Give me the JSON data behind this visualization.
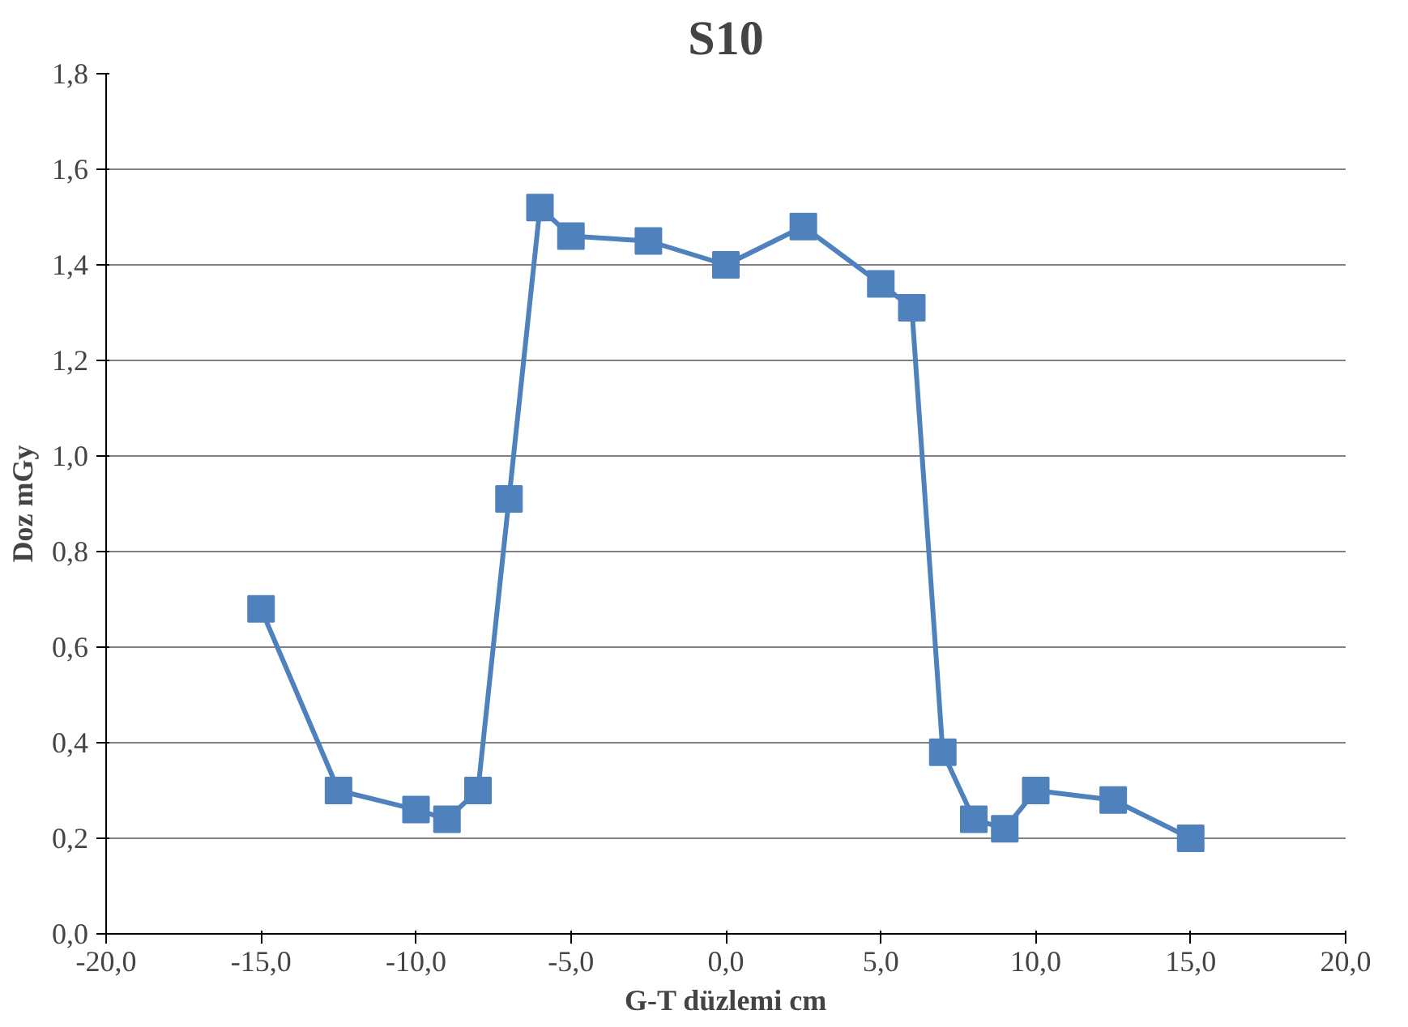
{
  "chart_data": {
    "type": "line",
    "title": "S10",
    "xlabel": "G-T düzlemi cm",
    "ylabel": "Doz mGy",
    "x": [
      -15,
      -12.5,
      -10,
      -9,
      -8,
      -7,
      -6,
      -5,
      -2.5,
      0,
      2.5,
      5,
      6,
      7,
      8,
      9,
      10,
      12.5,
      15
    ],
    "series": [
      {
        "color": "#4f81bd",
        "values": [
          0.68,
          0.3,
          0.26,
          0.24,
          0.3,
          0.91,
          1.52,
          1.46,
          1.45,
          1.4,
          1.48,
          1.36,
          1.31,
          0.38,
          0.24,
          0.22,
          0.3,
          0.28,
          0.2
        ]
      }
    ],
    "xlim": [
      -20,
      20
    ],
    "ylim": [
      0,
      1.8
    ],
    "xticks": [
      {
        "value": -20,
        "label": "-20,0"
      },
      {
        "value": -15,
        "label": "-15,0"
      },
      {
        "value": -10,
        "label": "-10,0"
      },
      {
        "value": -5,
        "label": "-5,0"
      },
      {
        "value": 0,
        "label": "0,0"
      },
      {
        "value": 5,
        "label": "5,0"
      },
      {
        "value": 10,
        "label": "10,0"
      },
      {
        "value": 15,
        "label": "15,0"
      },
      {
        "value": 20,
        "label": "20,0"
      }
    ],
    "yticks": [
      {
        "value": 0,
        "label": "0,0"
      },
      {
        "value": 0.2,
        "label": "0,2"
      },
      {
        "value": 0.4,
        "label": "0,4"
      },
      {
        "value": 0.6,
        "label": "0,6"
      },
      {
        "value": 0.8,
        "label": "0,8"
      },
      {
        "value": 1.0,
        "label": "1,0"
      },
      {
        "value": 1.2,
        "label": "1,2"
      },
      {
        "value": 1.4,
        "label": "1,4"
      },
      {
        "value": 1.6,
        "label": "1,6"
      },
      {
        "value": 1.8,
        "label": "1,8"
      }
    ],
    "grid": "y",
    "marker": "square",
    "line_style": "solid"
  }
}
